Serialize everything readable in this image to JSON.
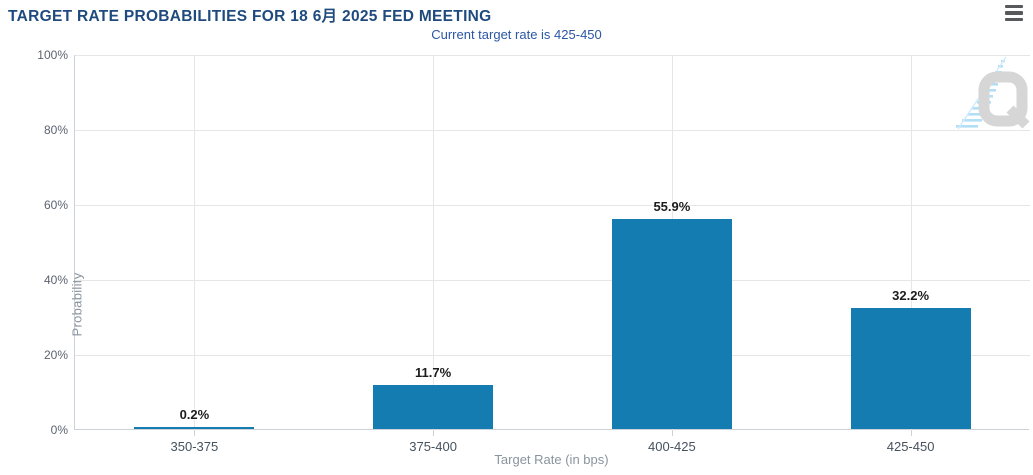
{
  "chart": {
    "title": "TARGET RATE PROBABILITIES FOR 18 6月 2025 FED MEETING",
    "subtitle": "Current target rate is 425-450",
    "menu_icon": "hamburger-icon",
    "watermark_icon": "quikstrike-q-logo"
  },
  "chart_data": {
    "type": "bar",
    "title": "TARGET RATE PROBABILITIES FOR 18 6月 2025 FED MEETING",
    "subtitle": "Current target rate is 425-450",
    "categories": [
      "350-375",
      "375-400",
      "400-425",
      "425-450"
    ],
    "values": [
      0.2,
      11.7,
      55.9,
      32.2
    ],
    "data_labels": [
      "0.2%",
      "11.7%",
      "55.9%",
      "32.2%"
    ],
    "xlabel": "Target Rate (in bps)",
    "ylabel": "Probability",
    "ylim": [
      0,
      100
    ],
    "yticks": [
      "0%",
      "20%",
      "40%",
      "60%",
      "80%",
      "100%"
    ],
    "grid": true,
    "legend_position": "none",
    "colors": {
      "bar": "#147cb1",
      "title": "#1f4a7d",
      "subtitle": "#2b57a5",
      "axis_label": "#5b6470",
      "category_label": "#46525e",
      "axis_title": "#8a949e",
      "gridline": "#e6e6e6",
      "axis_line": "#ccd2d9",
      "menu_icon": "#58595b",
      "watermark_q": "#d2d2d2",
      "watermark_dashes": "#aadcf5"
    }
  }
}
